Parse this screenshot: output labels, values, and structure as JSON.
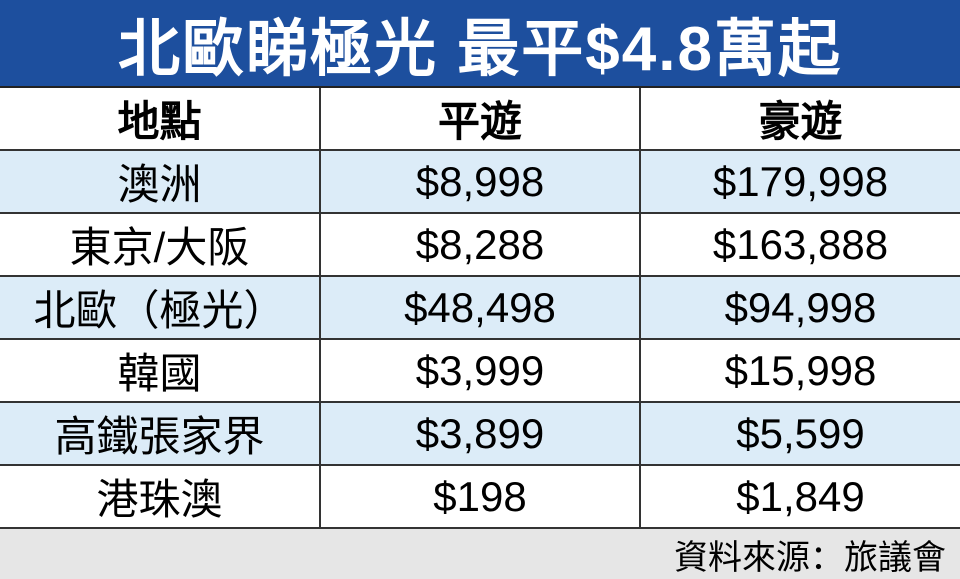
{
  "title": "北歐睇極光  最平$4.8萬起",
  "colors": {
    "title_bg": "#1d4f9e",
    "alt_row_bg": "#dcecf8",
    "footer_bg": "#e6e6e6"
  },
  "table": {
    "headers": [
      "地點",
      "平遊",
      "豪遊"
    ],
    "rows": [
      [
        "澳洲",
        "$8,998",
        "$179,998"
      ],
      [
        "東京/大阪",
        "$8,288",
        "$163,888"
      ],
      [
        "北歐（極光）",
        "$48,498",
        "$94,998"
      ],
      [
        "韓國",
        "$3,999",
        "$15,998"
      ],
      [
        "高鐵張家界",
        "$3,899",
        "$5,599"
      ],
      [
        "港珠澳",
        "$198",
        "$1,849"
      ]
    ]
  },
  "footer": {
    "source": "資料來源：旅議會"
  }
}
